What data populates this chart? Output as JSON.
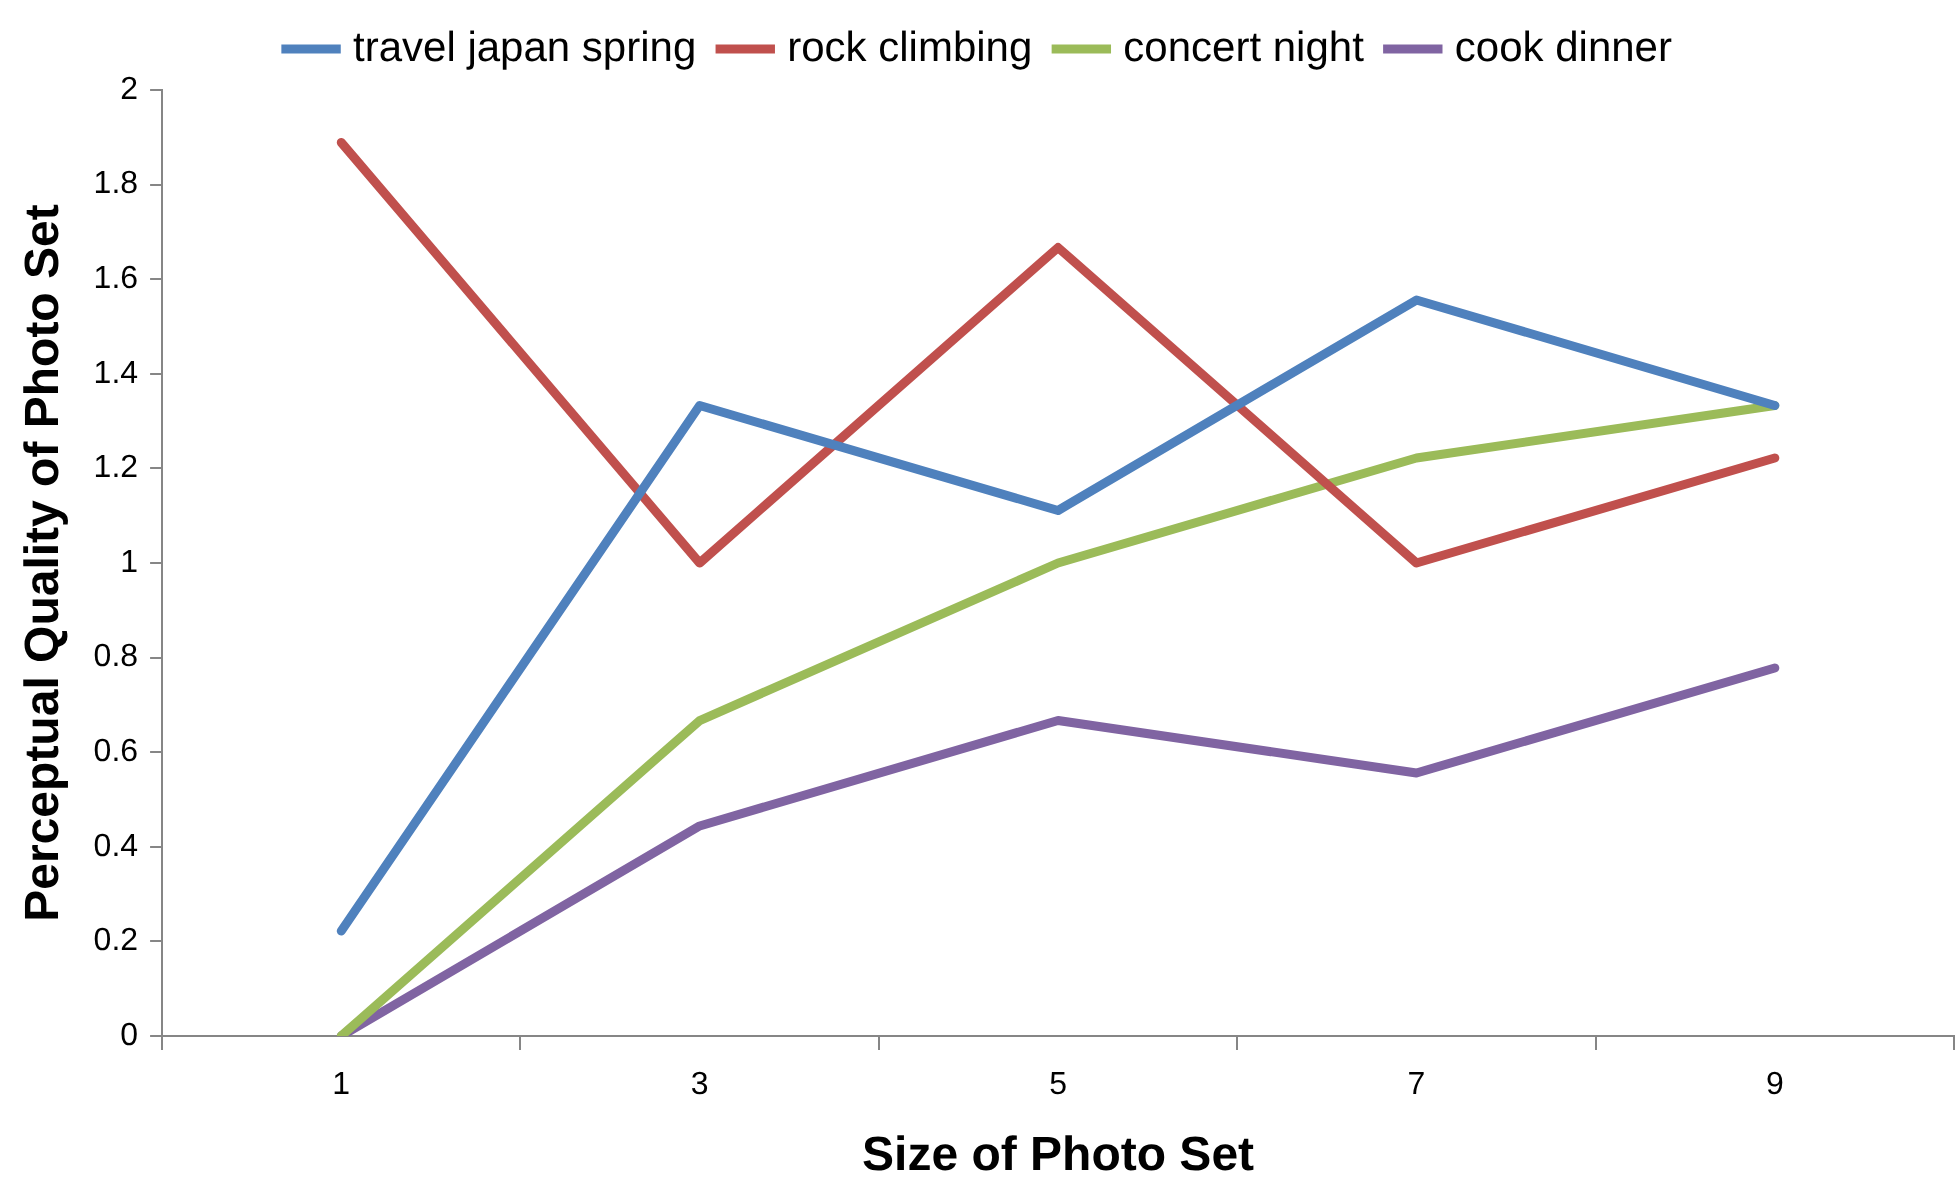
{
  "chart_data": {
    "type": "line",
    "xlabel": "Size of Photo Set",
    "ylabel": "Perceptual Quality of Photo Set",
    "categories": [
      "1",
      "3",
      "5",
      "7",
      "9"
    ],
    "series": [
      {
        "name": "travel japan spring",
        "color": "#4f81bd",
        "values": [
          0.222,
          1.333,
          1.111,
          1.556,
          1.333
        ]
      },
      {
        "name": "rock climbing",
        "color": "#c0504d",
        "values": [
          1.889,
          1.0,
          1.667,
          1.0,
          1.222
        ]
      },
      {
        "name": "concert night",
        "color": "#9bbb59",
        "values": [
          0,
          0.667,
          1.0,
          1.222,
          1.333
        ]
      },
      {
        "name": "cook dinner",
        "color": "#8064a2",
        "values": [
          0,
          0.444,
          0.667,
          0.556,
          0.778
        ]
      }
    ],
    "ylim": [
      0,
      2
    ],
    "yticks": [
      0,
      0.2,
      0.4,
      0.6,
      0.8,
      1,
      1.2,
      1.4,
      1.6,
      1.8,
      2
    ],
    "grid": false,
    "legend": "top",
    "marker": "none",
    "line_style": "solid"
  }
}
